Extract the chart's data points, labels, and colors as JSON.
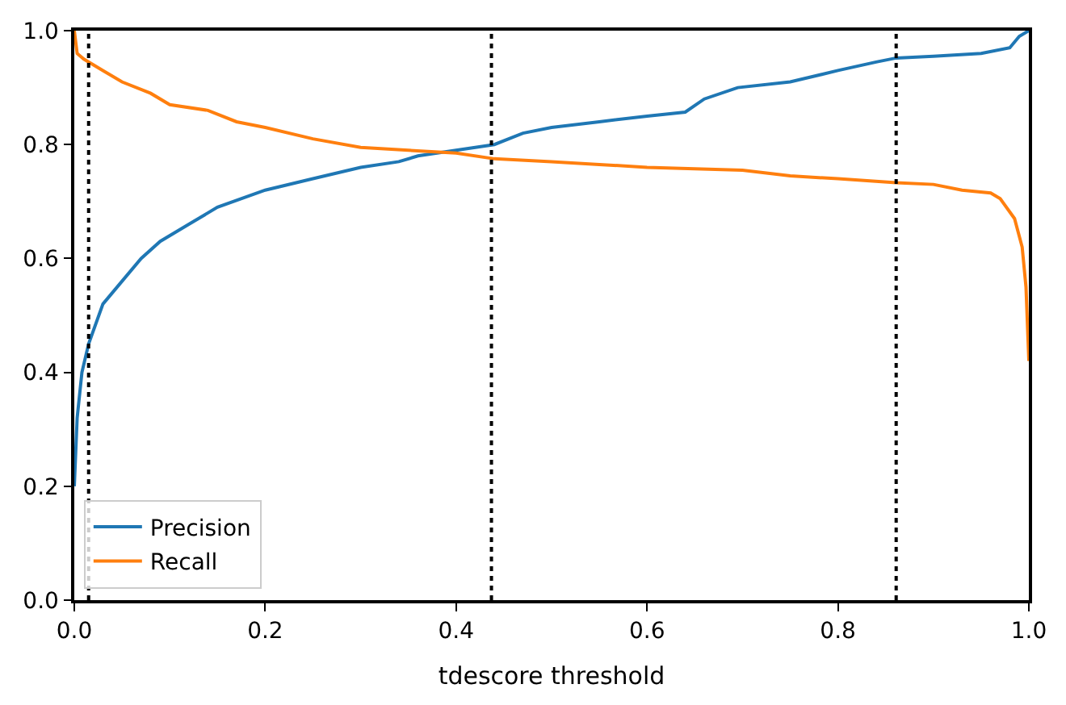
{
  "chart_data": {
    "type": "line",
    "xlabel": "tdescore threshold",
    "xlim": [
      0,
      1
    ],
    "ylim": [
      0,
      1
    ],
    "xticks": [
      {
        "value": 0,
        "label": "0.0"
      },
      {
        "value": 0.2,
        "label": "0.2"
      },
      {
        "value": 0.4,
        "label": "0.4"
      },
      {
        "value": 0.6,
        "label": "0.6"
      },
      {
        "value": 0.8,
        "label": "0.8"
      },
      {
        "value": 1,
        "label": "1.0"
      }
    ],
    "yticks": [
      {
        "value": 0,
        "label": "0.0"
      },
      {
        "value": 0.2,
        "label": "0.2"
      },
      {
        "value": 0.4,
        "label": "0.4"
      },
      {
        "value": 0.6,
        "label": "0.6"
      },
      {
        "value": 0.8,
        "label": "0.8"
      },
      {
        "value": 1,
        "label": "1.0"
      }
    ],
    "legend": "bottom left",
    "line_style": "solid",
    "marker": "none",
    "series": [
      {
        "name": "Precision",
        "color": "#1f77b4",
        "x": [
          0,
          0.003,
          0.008,
          0.015,
          0.03,
          0.05,
          0.07,
          0.09,
          0.12,
          0.15,
          0.2,
          0.25,
          0.3,
          0.34,
          0.36,
          0.4,
          0.44,
          0.47,
          0.5,
          0.55,
          0.6,
          0.64,
          0.66,
          0.695,
          0.75,
          0.8,
          0.84,
          0.861,
          0.9,
          0.95,
          0.98,
          0.99,
          1.0
        ],
        "values": [
          0.2,
          0.32,
          0.4,
          0.45,
          0.52,
          0.56,
          0.6,
          0.63,
          0.66,
          0.69,
          0.72,
          0.74,
          0.76,
          0.77,
          0.78,
          0.79,
          0.8,
          0.82,
          0.83,
          0.84,
          0.85,
          0.857,
          0.88,
          0.9,
          0.91,
          0.93,
          0.945,
          0.952,
          0.955,
          0.96,
          0.97,
          0.99,
          1.0
        ]
      },
      {
        "name": "Recall",
        "color": "#ff7f0e",
        "x": [
          0,
          0.003,
          0.01,
          0.03,
          0.05,
          0.08,
          0.1,
          0.14,
          0.17,
          0.2,
          0.25,
          0.3,
          0.35,
          0.4,
          0.44,
          0.5,
          0.55,
          0.6,
          0.7,
          0.75,
          0.8,
          0.861,
          0.9,
          0.93,
          0.96,
          0.97,
          0.985,
          0.993,
          0.997,
          1.0
        ],
        "values": [
          1.0,
          0.96,
          0.95,
          0.93,
          0.91,
          0.89,
          0.87,
          0.86,
          0.84,
          0.83,
          0.81,
          0.795,
          0.79,
          0.785,
          0.775,
          0.77,
          0.765,
          0.76,
          0.755,
          0.745,
          0.74,
          0.733,
          0.73,
          0.72,
          0.715,
          0.705,
          0.67,
          0.62,
          0.55,
          0.42
        ]
      }
    ],
    "ref_lines": [
      {
        "axis": "x",
        "value": 0.015,
        "color": "#000000",
        "line_style": "dotted"
      },
      {
        "axis": "x",
        "value": 0.437,
        "color": "#000000",
        "line_style": "dotted"
      },
      {
        "axis": "x",
        "value": 0.861,
        "color": "#000000",
        "line_style": "dotted"
      }
    ]
  }
}
